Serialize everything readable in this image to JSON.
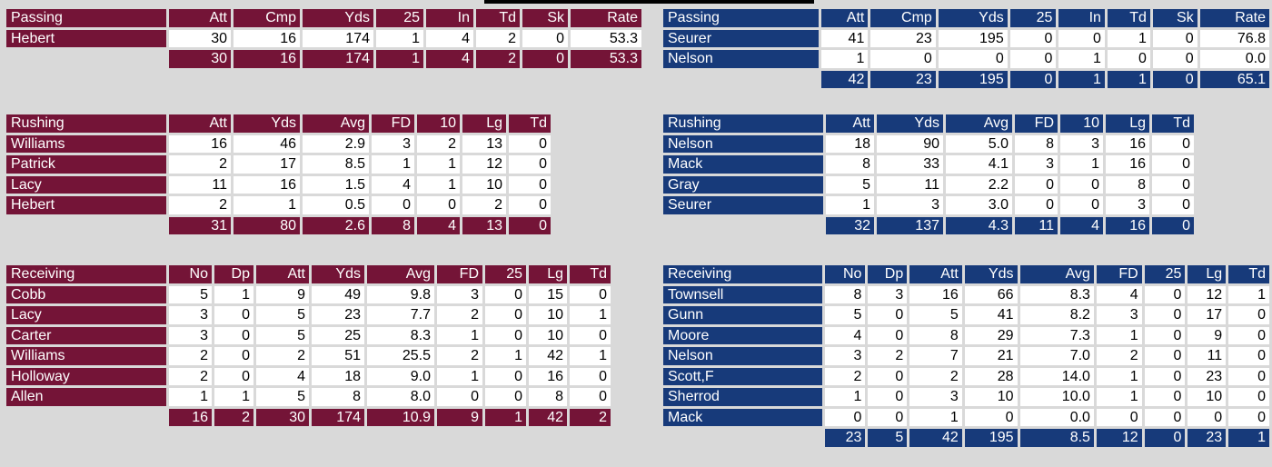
{
  "home": {
    "passing": {
      "title": "Passing",
      "cols": [
        "Att",
        "Cmp",
        "Yds",
        "25",
        "In",
        "Td",
        "Sk",
        "Rate"
      ],
      "rows": [
        {
          "name": "Hebert",
          "vals": [
            "30",
            "16",
            "174",
            "1",
            "4",
            "2",
            "0",
            "53.3"
          ]
        }
      ],
      "total": [
        "30",
        "16",
        "174",
        "1",
        "4",
        "2",
        "0",
        "53.3"
      ]
    },
    "rushing": {
      "title": "Rushing",
      "cols": [
        "Att",
        "Yds",
        "Avg",
        "FD",
        "10",
        "Lg",
        "Td"
      ],
      "rows": [
        {
          "name": "Williams",
          "vals": [
            "16",
            "46",
            "2.9",
            "3",
            "2",
            "13",
            "0"
          ]
        },
        {
          "name": "Patrick",
          "vals": [
            "2",
            "17",
            "8.5",
            "1",
            "1",
            "12",
            "0"
          ]
        },
        {
          "name": "Lacy",
          "vals": [
            "11",
            "16",
            "1.5",
            "4",
            "1",
            "10",
            "0"
          ]
        },
        {
          "name": "Hebert",
          "vals": [
            "2",
            "1",
            "0.5",
            "0",
            "0",
            "2",
            "0"
          ]
        }
      ],
      "total": [
        "31",
        "80",
        "2.6",
        "8",
        "4",
        "13",
        "0"
      ]
    },
    "receiving": {
      "title": "Receiving",
      "cols": [
        "No",
        "Dp",
        "Att",
        "Yds",
        "Avg",
        "FD",
        "25",
        "Lg",
        "Td"
      ],
      "rows": [
        {
          "name": "Cobb",
          "vals": [
            "5",
            "1",
            "9",
            "49",
            "9.8",
            "3",
            "0",
            "15",
            "0"
          ]
        },
        {
          "name": "Lacy",
          "vals": [
            "3",
            "0",
            "5",
            "23",
            "7.7",
            "2",
            "0",
            "10",
            "1"
          ]
        },
        {
          "name": "Carter",
          "vals": [
            "3",
            "0",
            "5",
            "25",
            "8.3",
            "1",
            "0",
            "10",
            "0"
          ]
        },
        {
          "name": "Williams",
          "vals": [
            "2",
            "0",
            "2",
            "51",
            "25.5",
            "2",
            "1",
            "42",
            "1"
          ]
        },
        {
          "name": "Holloway",
          "vals": [
            "2",
            "0",
            "4",
            "18",
            "9.0",
            "1",
            "0",
            "16",
            "0"
          ]
        },
        {
          "name": "Allen",
          "vals": [
            "1",
            "1",
            "5",
            "8",
            "8.0",
            "0",
            "0",
            "8",
            "0"
          ]
        }
      ],
      "total": [
        "16",
        "2",
        "30",
        "174",
        "10.9",
        "9",
        "1",
        "42",
        "2"
      ]
    }
  },
  "away": {
    "passing": {
      "title": "Passing",
      "cols": [
        "Att",
        "Cmp",
        "Yds",
        "25",
        "In",
        "Td",
        "Sk",
        "Rate"
      ],
      "rows": [
        {
          "name": "Seurer",
          "vals": [
            "41",
            "23",
            "195",
            "0",
            "0",
            "1",
            "0",
            "76.8"
          ]
        },
        {
          "name": "Nelson",
          "vals": [
            "1",
            "0",
            "0",
            "0",
            "1",
            "0",
            "0",
            "0.0"
          ]
        }
      ],
      "total": [
        "42",
        "23",
        "195",
        "0",
        "1",
        "1",
        "0",
        "65.1"
      ]
    },
    "rushing": {
      "title": "Rushing",
      "cols": [
        "Att",
        "Yds",
        "Avg",
        "FD",
        "10",
        "Lg",
        "Td"
      ],
      "rows": [
        {
          "name": "Nelson",
          "vals": [
            "18",
            "90",
            "5.0",
            "8",
            "3",
            "16",
            "0"
          ]
        },
        {
          "name": "Mack",
          "vals": [
            "8",
            "33",
            "4.1",
            "3",
            "1",
            "16",
            "0"
          ]
        },
        {
          "name": "Gray",
          "vals": [
            "5",
            "11",
            "2.2",
            "0",
            "0",
            "8",
            "0"
          ]
        },
        {
          "name": "Seurer",
          "vals": [
            "1",
            "3",
            "3.0",
            "0",
            "0",
            "3",
            "0"
          ]
        }
      ],
      "total": [
        "32",
        "137",
        "4.3",
        "11",
        "4",
        "16",
        "0"
      ]
    },
    "receiving": {
      "title": "Receiving",
      "cols": [
        "No",
        "Dp",
        "Att",
        "Yds",
        "Avg",
        "FD",
        "25",
        "Lg",
        "Td"
      ],
      "rows": [
        {
          "name": "Townsell",
          "vals": [
            "8",
            "3",
            "16",
            "66",
            "8.3",
            "4",
            "0",
            "12",
            "1"
          ]
        },
        {
          "name": "Gunn",
          "vals": [
            "5",
            "0",
            "5",
            "41",
            "8.2",
            "3",
            "0",
            "17",
            "0"
          ]
        },
        {
          "name": "Moore",
          "vals": [
            "4",
            "0",
            "8",
            "29",
            "7.3",
            "1",
            "0",
            "9",
            "0"
          ]
        },
        {
          "name": "Nelson",
          "vals": [
            "3",
            "2",
            "7",
            "21",
            "7.0",
            "2",
            "0",
            "11",
            "0"
          ]
        },
        {
          "name": "Scott,F",
          "vals": [
            "2",
            "0",
            "2",
            "28",
            "14.0",
            "1",
            "0",
            "23",
            "0"
          ]
        },
        {
          "name": "Sherrod",
          "vals": [
            "1",
            "0",
            "3",
            "10",
            "10.0",
            "1",
            "0",
            "10",
            "0"
          ]
        },
        {
          "name": "Mack",
          "vals": [
            "0",
            "0",
            "1",
            "0",
            "0.0",
            "0",
            "0",
            "0",
            "0"
          ]
        }
      ],
      "total": [
        "23",
        "5",
        "42",
        "195",
        "8.5",
        "12",
        "0",
        "23",
        "1"
      ]
    }
  },
  "colors": {
    "home": "#741437",
    "away": "#173a7a",
    "background": "#d9d9d9"
  }
}
